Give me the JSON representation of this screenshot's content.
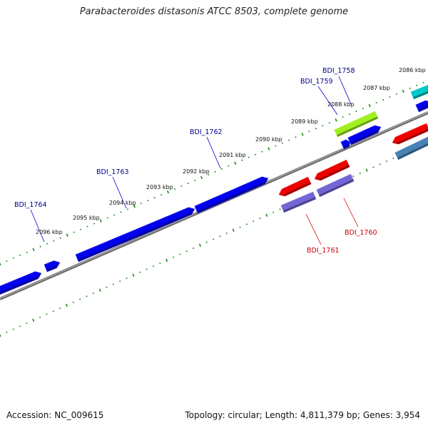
{
  "title": "Parabacteroides distasonis ATCC 8503, complete genome",
  "footer": {
    "accession": "Accession: NC_009615",
    "summary": "Topology: circular; Length: 4,811,379 bp; Genes: 3,954"
  },
  "colors": {
    "forward_cds": "#0000ee",
    "reverse_cds": "#ee0000",
    "reverse_rna": "#7466d6",
    "cyan_feature": "#00c8c8",
    "green_feature": "#a0f020",
    "steelblue_feature": "#4682b4",
    "ticks": "#1a8a1a",
    "backbone": "#808080",
    "forward_label": "#00008b",
    "reverse_label": "#cc0000"
  },
  "kbp_labels": [
    "2086 kbp",
    "2087 kbp",
    "2088 kbp",
    "2089 kbp",
    "2090 kbp",
    "2091 kbp",
    "2092 kbp",
    "2093 kbp",
    "2094 kbp",
    "2095 kbp",
    "2096 kbp"
  ],
  "gene_labels": [
    {
      "name": "BDI_1758",
      "strand": "forward"
    },
    {
      "name": "BDI_1759",
      "strand": "forward"
    },
    {
      "name": "BDI_1762",
      "strand": "forward"
    },
    {
      "name": "BDI_1763",
      "strand": "forward"
    },
    {
      "name": "BDI_1764",
      "strand": "forward"
    },
    {
      "name": "BDI_1760",
      "strand": "reverse"
    },
    {
      "name": "BDI_1761",
      "strand": "reverse"
    }
  ]
}
